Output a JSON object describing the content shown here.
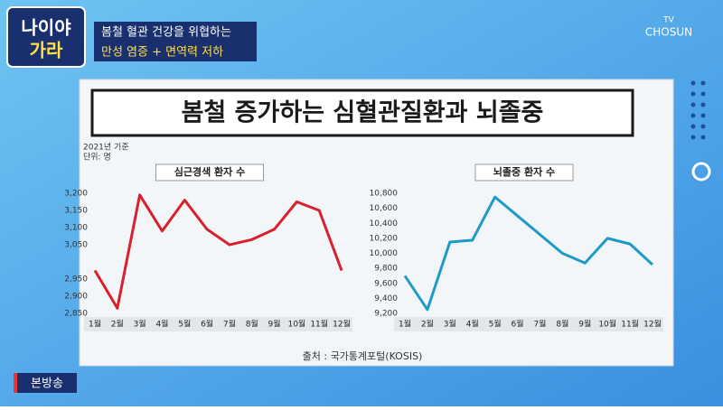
{
  "header": {
    "logo": [
      "나이야",
      "가라"
    ],
    "caption": [
      "봄철 혈관 건강을 위협하는",
      "만성 염증 + 면역력 저하"
    ],
    "channel": [
      "TV",
      "CHOSUN"
    ]
  },
  "panel_title": "봄철 증가하는 심혈관질환과 뇌졸중",
  "basis": "2021년 기준",
  "unit": "단위: 명",
  "source": "출처 : 국가통계포털(KOSIS)",
  "badge": "본방송",
  "chart_data": [
    {
      "type": "line",
      "title": "심근경색 환자 수",
      "categories": [
        "1월",
        "2월",
        "3월",
        "4월",
        "5월",
        "6월",
        "7월",
        "8월",
        "9월",
        "10월",
        "11월",
        "12월"
      ],
      "values": [
        2975,
        2865,
        3195,
        3090,
        3180,
        3095,
        3050,
        3065,
        3095,
        3175,
        3150,
        2975
      ],
      "color": "#d9202e",
      "ylim": [
        2850,
        3200
      ],
      "yticks": [
        {
          "value": 3200,
          "label": "3,200"
        },
        {
          "value": 3150,
          "label": "3,150"
        },
        {
          "value": 3100,
          "label": "3,100"
        },
        {
          "value": 3050,
          "label": "3,050"
        },
        {
          "value": 2950,
          "label": "2,950"
        },
        {
          "value": 2900,
          "label": "2,900"
        },
        {
          "value": 2850,
          "label": "2,850"
        }
      ],
      "grid": false
    },
    {
      "type": "line",
      "title": "뇌졸중 환자 수",
      "categories": [
        "1월",
        "2월",
        "3월",
        "4월",
        "5월",
        "6월",
        "7월",
        "8월",
        "9월",
        "10월",
        "11월",
        "12월"
      ],
      "values": [
        9700,
        9250,
        10150,
        10175,
        10750,
        10500,
        10250,
        10000,
        9870,
        10200,
        10125,
        9850
      ],
      "color": "#1e9bc4",
      "ylim": [
        9200,
        10800
      ],
      "yticks": [
        {
          "value": 10800,
          "label": "10,800"
        },
        {
          "value": 10600,
          "label": "10,600"
        },
        {
          "value": 10400,
          "label": "10,400"
        },
        {
          "value": 10200,
          "label": "10,200"
        },
        {
          "value": 10000,
          "label": "10,000"
        },
        {
          "value": 9800,
          "label": "9,800"
        },
        {
          "value": 9600,
          "label": "9,600"
        },
        {
          "value": 9400,
          "label": "9,400"
        },
        {
          "value": 9200,
          "label": "9,200"
        }
      ],
      "grid": false
    }
  ]
}
